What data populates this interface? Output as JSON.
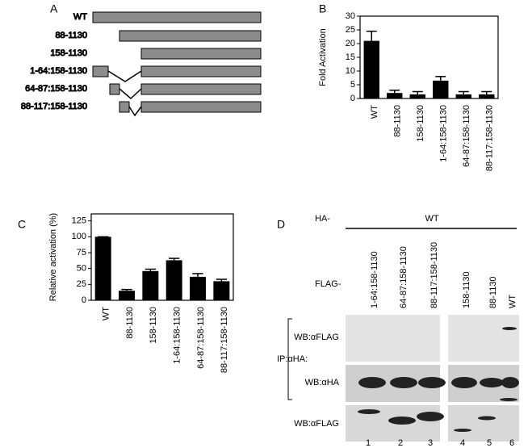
{
  "panel_labels": [
    "A",
    "B",
    "C",
    "D"
  ],
  "constructs": [
    "WT",
    "88-1130",
    "158-1130",
    "1-64:158-1130",
    "64-87:158-1130",
    "88-117:158-1130"
  ],
  "chart_data": [
    {
      "type": "bar",
      "ylabel": "Fold Activation",
      "categories": [
        "WT",
        "88-1130",
        "158-1130",
        "1-64:158-1130",
        "64-87:158-1130",
        "88-117:158-1130"
      ],
      "values": [
        21,
        2,
        1.5,
        6.5,
        1.5,
        1.5
      ],
      "errors": [
        3.5,
        1,
        1,
        1.5,
        1,
        1
      ],
      "color": "#000000",
      "ylim": [
        0,
        30
      ],
      "yticks": [
        0,
        5,
        10,
        15,
        20,
        25,
        30
      ]
    },
    {
      "type": "bar",
      "ylabel": "Relative activation (%)",
      "categories": [
        "WT",
        "88-1130",
        "158-1130",
        "1-64:158-1130",
        "64-87:158-1130",
        "88-117:158-1130"
      ],
      "values": [
        100,
        15,
        46,
        63,
        37,
        30
      ],
      "errors": [
        0,
        2,
        3,
        3,
        5,
        3
      ],
      "color": "#000000",
      "ylim": [
        0,
        136
      ],
      "yticks": [
        0,
        25,
        50,
        75,
        100,
        125
      ]
    }
  ],
  "blot": {
    "ha_label": "HA-",
    "ha_construct": "WT",
    "flag_label": "FLAG-",
    "lanes": [
      "1-64:158-1130",
      "64-87:158-1130",
      "88-117:158-1130",
      "158-1130",
      "88-1130",
      "WT"
    ],
    "ip_label": "IP:αHA:",
    "rows": [
      "WB:αFLAG",
      "WB:αHA",
      "WB:αFLAG"
    ],
    "lane_numbers": [
      "1",
      "2",
      "3",
      "4",
      "5",
      "6"
    ]
  }
}
